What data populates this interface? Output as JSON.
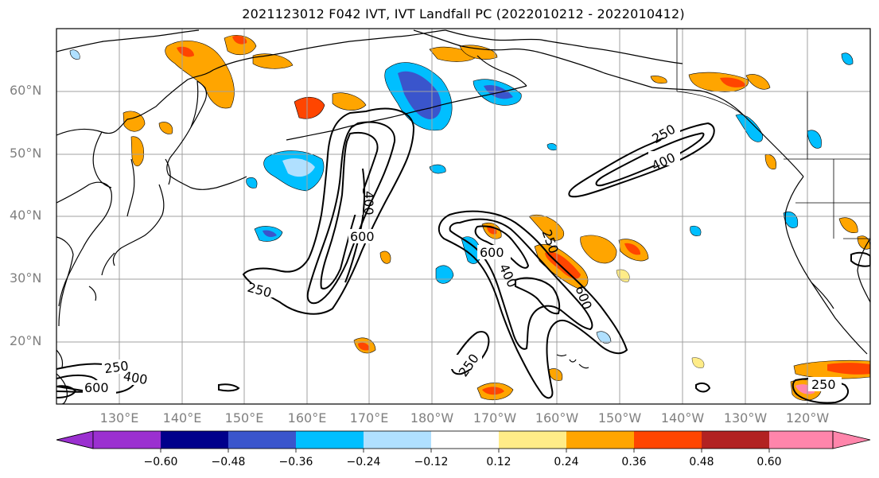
{
  "title": "2021123012 F042 IVT, IVT Landfall PC (2022010212 - 2022010412)",
  "lat_labels": [
    "60°N",
    "50°N",
    "40°N",
    "30°N",
    "20°N"
  ],
  "lon_labels": [
    "130°E",
    "140°E",
    "150°E",
    "160°E",
    "170°E",
    "180°W",
    "170°W",
    "160°W",
    "150°W",
    "140°W",
    "130°W",
    "120°W"
  ],
  "contour_labels": [
    "250",
    "400",
    "600"
  ],
  "colorbar": {
    "ticks": [
      "−0.60",
      "−0.48",
      "−0.36",
      "−0.24",
      "−0.12",
      "0.12",
      "0.24",
      "0.36",
      "0.48",
      "0.60"
    ],
    "colors": [
      "#9b30d0",
      "#00008b",
      "#3a55cc",
      "#00bfff",
      "#b0e0ff",
      "#ffffff",
      "#ffec88",
      "#ffa500",
      "#ff4500",
      "#b22222",
      "#ff85ab"
    ]
  },
  "colors": {
    "land_outline": "#000000",
    "grid": "#a0a0a0",
    "contour": "#000000"
  }
}
